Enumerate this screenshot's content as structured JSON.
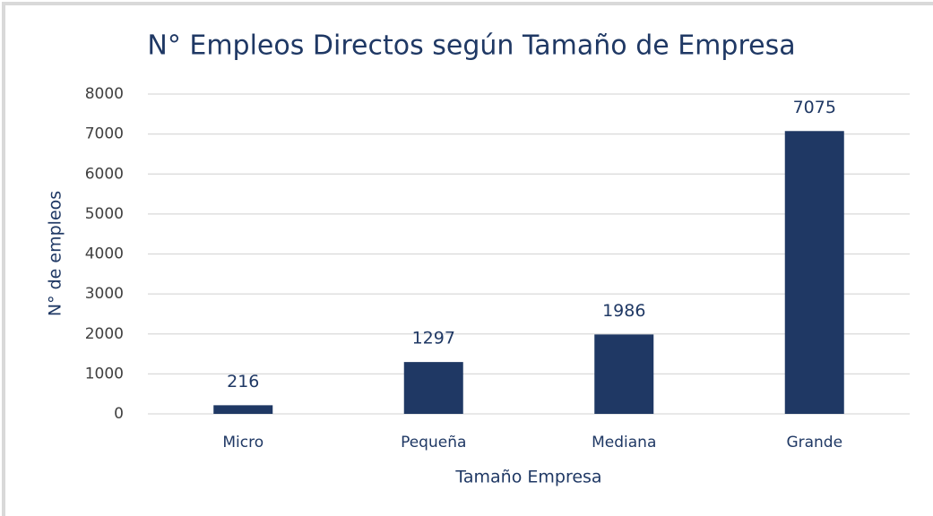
{
  "chart_data": {
    "type": "bar",
    "title": "N° Empleos Directos según Tamaño de Empresa",
    "x_label": "Tamaño Empresa",
    "y_label": "N° de empleos",
    "categories": [
      "Micro",
      "Pequeña",
      "Mediana",
      "Grande"
    ],
    "values": [
      216,
      1297,
      1986,
      7075
    ],
    "color": "#1f3864",
    "ylim": [
      0,
      8000
    ],
    "yticks": [
      0,
      1000,
      2000,
      3000,
      4000,
      5000,
      6000,
      7000,
      8000
    ],
    "grid": true,
    "data_labels": true
  }
}
